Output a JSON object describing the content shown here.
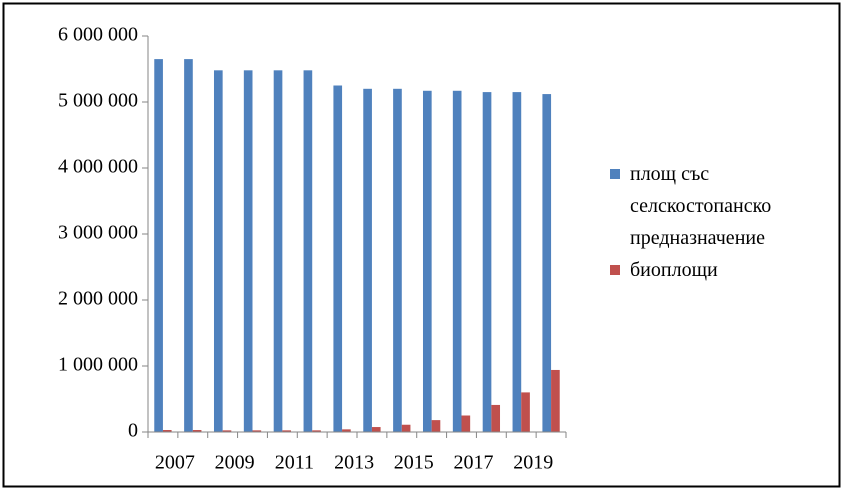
{
  "chart_data": {
    "type": "bar",
    "categories": [
      "2007",
      null,
      "2009",
      null,
      "2011",
      null,
      "2013",
      null,
      "2015",
      null,
      "2017",
      null,
      "2019",
      null
    ],
    "series": [
      {
        "name": "площ със селскостопанско предназначение",
        "color": "#4f81bd",
        "values": [
          5650000,
          5650000,
          5480000,
          5480000,
          5480000,
          5480000,
          5250000,
          5200000,
          5200000,
          5170000,
          5170000,
          5150000,
          5150000,
          5120000
        ]
      },
      {
        "name": "биоплощи",
        "color": "#c0504d",
        "values": [
          30000,
          30000,
          25000,
          25000,
          25000,
          25000,
          40000,
          75000,
          110000,
          180000,
          250000,
          410000,
          600000,
          940000
        ]
      }
    ],
    "ylim": [
      0,
      6000000
    ],
    "yticks": [
      0,
      {
        "value": 1000000,
        "label": "1 000 000"
      },
      {
        "value": 2000000,
        "label": "2 000 000"
      },
      {
        "value": 3000000,
        "label": "3 000 000"
      },
      {
        "value": 4000000,
        "label": "4 000 000"
      },
      {
        "value": 5000000,
        "label": "5 000 000"
      },
      {
        "value": 6000000,
        "label": "6 000 000"
      }
    ],
    "legend": "right"
  }
}
